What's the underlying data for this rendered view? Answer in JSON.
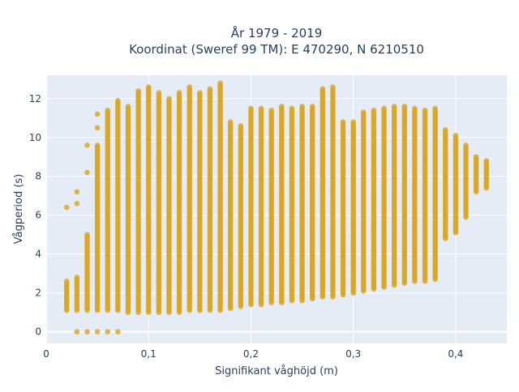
{
  "chart_data": {
    "type": "scatter",
    "title_line1": "År 1979 - 2019",
    "title_line2": "Koordinat (Sweref 99 TM): E 470290, N 6210510",
    "xlabel": "Signifikant våghöjd (m)",
    "ylabel": "Vågperiod (s)",
    "xlim": [
      0,
      0.45
    ],
    "ylim": [
      -0.6,
      13.2
    ],
    "x_ticks": [
      0,
      0.1,
      0.2,
      0.3,
      0.4
    ],
    "x_tick_labels": [
      "0",
      "0,1",
      "0,2",
      "0,3",
      "0,4"
    ],
    "y_ticks": [
      0,
      2,
      4,
      6,
      8,
      10,
      12
    ],
    "y_tick_labels": [
      "0",
      "2",
      "4",
      "6",
      "8",
      "10",
      "12"
    ],
    "grid": true,
    "legend": "none",
    "marker_color": "#DAA520",
    "plot_bg": "#E5ECF6",
    "x_step": 0.01,
    "columns": [
      {
        "x": 0.02,
        "ymin": 1.1,
        "ymax": 2.6,
        "extra": [
          6.4
        ]
      },
      {
        "x": 0.03,
        "ymin": 1.1,
        "ymax": 2.8,
        "extra": [
          0,
          6.6,
          7.2
        ]
      },
      {
        "x": 0.04,
        "ymin": 1.1,
        "ymax": 5.0,
        "extra": [
          0,
          8.2,
          9.6
        ]
      },
      {
        "x": 0.05,
        "ymin": 1.1,
        "ymax": 9.6,
        "extra": [
          0,
          10.5,
          11.2
        ]
      },
      {
        "x": 0.06,
        "ymin": 1.1,
        "ymax": 11.4,
        "extra": [
          0
        ]
      },
      {
        "x": 0.07,
        "ymin": 1.1,
        "ymax": 11.9,
        "extra": [
          0
        ]
      },
      {
        "x": 0.08,
        "ymin": 1.0,
        "ymax": 11.6,
        "extra": []
      },
      {
        "x": 0.09,
        "ymin": 1.0,
        "ymax": 12.4,
        "extra": []
      },
      {
        "x": 0.1,
        "ymin": 1.0,
        "ymax": 12.6,
        "extra": []
      },
      {
        "x": 0.11,
        "ymin": 1.0,
        "ymax": 12.3,
        "extra": []
      },
      {
        "x": 0.12,
        "ymin": 1.0,
        "ymax": 12.0,
        "extra": []
      },
      {
        "x": 0.13,
        "ymin": 1.0,
        "ymax": 12.3,
        "extra": []
      },
      {
        "x": 0.14,
        "ymin": 1.1,
        "ymax": 12.6,
        "extra": []
      },
      {
        "x": 0.15,
        "ymin": 1.1,
        "ymax": 12.3,
        "extra": []
      },
      {
        "x": 0.16,
        "ymin": 1.1,
        "ymax": 12.5,
        "extra": []
      },
      {
        "x": 0.17,
        "ymin": 1.1,
        "ymax": 12.8,
        "extra": []
      },
      {
        "x": 0.18,
        "ymin": 1.2,
        "ymax": 10.8,
        "extra": []
      },
      {
        "x": 0.19,
        "ymin": 1.3,
        "ymax": 10.6,
        "extra": []
      },
      {
        "x": 0.2,
        "ymin": 1.4,
        "ymax": 11.5,
        "extra": []
      },
      {
        "x": 0.21,
        "ymin": 1.4,
        "ymax": 11.5,
        "extra": []
      },
      {
        "x": 0.22,
        "ymin": 1.5,
        "ymax": 11.4,
        "extra": []
      },
      {
        "x": 0.23,
        "ymin": 1.5,
        "ymax": 11.6,
        "extra": []
      },
      {
        "x": 0.24,
        "ymin": 1.6,
        "ymax": 11.5,
        "extra": []
      },
      {
        "x": 0.25,
        "ymin": 1.6,
        "ymax": 11.6,
        "extra": []
      },
      {
        "x": 0.26,
        "ymin": 1.7,
        "ymax": 11.6,
        "extra": []
      },
      {
        "x": 0.27,
        "ymin": 1.8,
        "ymax": 12.5,
        "extra": []
      },
      {
        "x": 0.28,
        "ymin": 1.8,
        "ymax": 12.6,
        "extra": []
      },
      {
        "x": 0.29,
        "ymin": 1.9,
        "ymax": 10.8,
        "extra": []
      },
      {
        "x": 0.3,
        "ymin": 2.0,
        "ymax": 10.8,
        "extra": []
      },
      {
        "x": 0.31,
        "ymin": 2.1,
        "ymax": 11.3,
        "extra": []
      },
      {
        "x": 0.32,
        "ymin": 2.2,
        "ymax": 11.4,
        "extra": []
      },
      {
        "x": 0.33,
        "ymin": 2.3,
        "ymax": 11.5,
        "extra": []
      },
      {
        "x": 0.34,
        "ymin": 2.4,
        "ymax": 11.6,
        "extra": []
      },
      {
        "x": 0.35,
        "ymin": 2.5,
        "ymax": 11.6,
        "extra": []
      },
      {
        "x": 0.36,
        "ymin": 2.6,
        "ymax": 11.5,
        "extra": []
      },
      {
        "x": 0.37,
        "ymin": 2.6,
        "ymax": 11.4,
        "extra": []
      },
      {
        "x": 0.38,
        "ymin": 2.7,
        "ymax": 11.5,
        "extra": []
      },
      {
        "x": 0.39,
        "ymin": 4.8,
        "ymax": 10.4,
        "extra": []
      },
      {
        "x": 0.4,
        "ymin": 5.1,
        "ymax": 10.1,
        "extra": []
      },
      {
        "x": 0.41,
        "ymin": 5.9,
        "ymax": 9.6,
        "extra": []
      },
      {
        "x": 0.42,
        "ymin": 7.2,
        "ymax": 9.0,
        "extra": []
      },
      {
        "x": 0.43,
        "ymin": 7.4,
        "ymax": 8.8,
        "extra": []
      }
    ]
  }
}
